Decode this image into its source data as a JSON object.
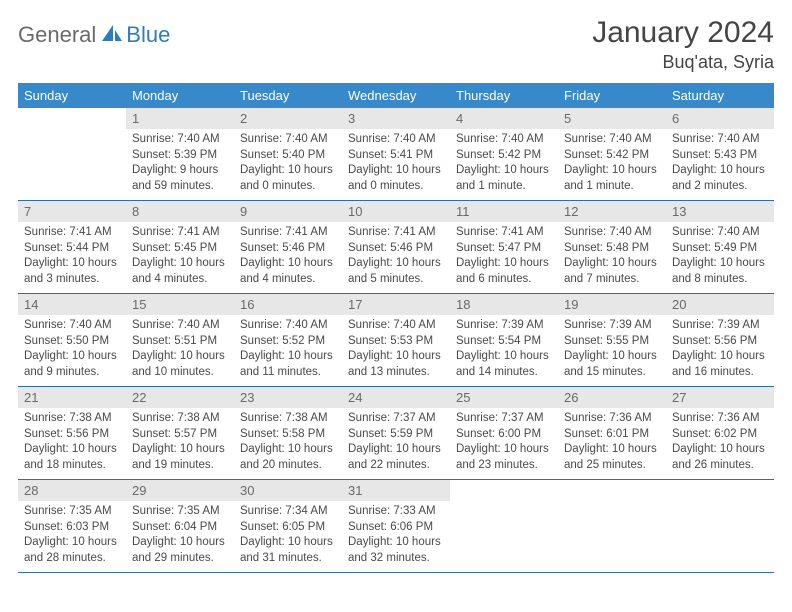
{
  "brand": {
    "general": "General",
    "blue": "Blue"
  },
  "title": "January 2024",
  "location": "Buq'ata, Syria",
  "colors": {
    "header_bg": "#3789ca",
    "header_text": "#ffffff",
    "daynum_bg": "#e7e7e7",
    "daynum_text": "#6a6a6a",
    "row_border": "#2f6da8",
    "body_text": "#4a4a4a",
    "title_text": "#454545",
    "logo_gray": "#6a6a6a",
    "logo_blue": "#2f7bbf"
  },
  "weekdays": [
    "Sunday",
    "Monday",
    "Tuesday",
    "Wednesday",
    "Thursday",
    "Friday",
    "Saturday"
  ],
  "weeks": [
    [
      {
        "n": "",
        "sunrise": "",
        "sunset": "",
        "daylight": ""
      },
      {
        "n": "1",
        "sunrise": "Sunrise: 7:40 AM",
        "sunset": "Sunset: 5:39 PM",
        "daylight": "Daylight: 9 hours and 59 minutes."
      },
      {
        "n": "2",
        "sunrise": "Sunrise: 7:40 AM",
        "sunset": "Sunset: 5:40 PM",
        "daylight": "Daylight: 10 hours and 0 minutes."
      },
      {
        "n": "3",
        "sunrise": "Sunrise: 7:40 AM",
        "sunset": "Sunset: 5:41 PM",
        "daylight": "Daylight: 10 hours and 0 minutes."
      },
      {
        "n": "4",
        "sunrise": "Sunrise: 7:40 AM",
        "sunset": "Sunset: 5:42 PM",
        "daylight": "Daylight: 10 hours and 1 minute."
      },
      {
        "n": "5",
        "sunrise": "Sunrise: 7:40 AM",
        "sunset": "Sunset: 5:42 PM",
        "daylight": "Daylight: 10 hours and 1 minute."
      },
      {
        "n": "6",
        "sunrise": "Sunrise: 7:40 AM",
        "sunset": "Sunset: 5:43 PM",
        "daylight": "Daylight: 10 hours and 2 minutes."
      }
    ],
    [
      {
        "n": "7",
        "sunrise": "Sunrise: 7:41 AM",
        "sunset": "Sunset: 5:44 PM",
        "daylight": "Daylight: 10 hours and 3 minutes."
      },
      {
        "n": "8",
        "sunrise": "Sunrise: 7:41 AM",
        "sunset": "Sunset: 5:45 PM",
        "daylight": "Daylight: 10 hours and 4 minutes."
      },
      {
        "n": "9",
        "sunrise": "Sunrise: 7:41 AM",
        "sunset": "Sunset: 5:46 PM",
        "daylight": "Daylight: 10 hours and 4 minutes."
      },
      {
        "n": "10",
        "sunrise": "Sunrise: 7:41 AM",
        "sunset": "Sunset: 5:46 PM",
        "daylight": "Daylight: 10 hours and 5 minutes."
      },
      {
        "n": "11",
        "sunrise": "Sunrise: 7:41 AM",
        "sunset": "Sunset: 5:47 PM",
        "daylight": "Daylight: 10 hours and 6 minutes."
      },
      {
        "n": "12",
        "sunrise": "Sunrise: 7:40 AM",
        "sunset": "Sunset: 5:48 PM",
        "daylight": "Daylight: 10 hours and 7 minutes."
      },
      {
        "n": "13",
        "sunrise": "Sunrise: 7:40 AM",
        "sunset": "Sunset: 5:49 PM",
        "daylight": "Daylight: 10 hours and 8 minutes."
      }
    ],
    [
      {
        "n": "14",
        "sunrise": "Sunrise: 7:40 AM",
        "sunset": "Sunset: 5:50 PM",
        "daylight": "Daylight: 10 hours and 9 minutes."
      },
      {
        "n": "15",
        "sunrise": "Sunrise: 7:40 AM",
        "sunset": "Sunset: 5:51 PM",
        "daylight": "Daylight: 10 hours and 10 minutes."
      },
      {
        "n": "16",
        "sunrise": "Sunrise: 7:40 AM",
        "sunset": "Sunset: 5:52 PM",
        "daylight": "Daylight: 10 hours and 11 minutes."
      },
      {
        "n": "17",
        "sunrise": "Sunrise: 7:40 AM",
        "sunset": "Sunset: 5:53 PM",
        "daylight": "Daylight: 10 hours and 13 minutes."
      },
      {
        "n": "18",
        "sunrise": "Sunrise: 7:39 AM",
        "sunset": "Sunset: 5:54 PM",
        "daylight": "Daylight: 10 hours and 14 minutes."
      },
      {
        "n": "19",
        "sunrise": "Sunrise: 7:39 AM",
        "sunset": "Sunset: 5:55 PM",
        "daylight": "Daylight: 10 hours and 15 minutes."
      },
      {
        "n": "20",
        "sunrise": "Sunrise: 7:39 AM",
        "sunset": "Sunset: 5:56 PM",
        "daylight": "Daylight: 10 hours and 16 minutes."
      }
    ],
    [
      {
        "n": "21",
        "sunrise": "Sunrise: 7:38 AM",
        "sunset": "Sunset: 5:56 PM",
        "daylight": "Daylight: 10 hours and 18 minutes."
      },
      {
        "n": "22",
        "sunrise": "Sunrise: 7:38 AM",
        "sunset": "Sunset: 5:57 PM",
        "daylight": "Daylight: 10 hours and 19 minutes."
      },
      {
        "n": "23",
        "sunrise": "Sunrise: 7:38 AM",
        "sunset": "Sunset: 5:58 PM",
        "daylight": "Daylight: 10 hours and 20 minutes."
      },
      {
        "n": "24",
        "sunrise": "Sunrise: 7:37 AM",
        "sunset": "Sunset: 5:59 PM",
        "daylight": "Daylight: 10 hours and 22 minutes."
      },
      {
        "n": "25",
        "sunrise": "Sunrise: 7:37 AM",
        "sunset": "Sunset: 6:00 PM",
        "daylight": "Daylight: 10 hours and 23 minutes."
      },
      {
        "n": "26",
        "sunrise": "Sunrise: 7:36 AM",
        "sunset": "Sunset: 6:01 PM",
        "daylight": "Daylight: 10 hours and 25 minutes."
      },
      {
        "n": "27",
        "sunrise": "Sunrise: 7:36 AM",
        "sunset": "Sunset: 6:02 PM",
        "daylight": "Daylight: 10 hours and 26 minutes."
      }
    ],
    [
      {
        "n": "28",
        "sunrise": "Sunrise: 7:35 AM",
        "sunset": "Sunset: 6:03 PM",
        "daylight": "Daylight: 10 hours and 28 minutes."
      },
      {
        "n": "29",
        "sunrise": "Sunrise: 7:35 AM",
        "sunset": "Sunset: 6:04 PM",
        "daylight": "Daylight: 10 hours and 29 minutes."
      },
      {
        "n": "30",
        "sunrise": "Sunrise: 7:34 AM",
        "sunset": "Sunset: 6:05 PM",
        "daylight": "Daylight: 10 hours and 31 minutes."
      },
      {
        "n": "31",
        "sunrise": "Sunrise: 7:33 AM",
        "sunset": "Sunset: 6:06 PM",
        "daylight": "Daylight: 10 hours and 32 minutes."
      },
      {
        "n": "",
        "sunrise": "",
        "sunset": "",
        "daylight": ""
      },
      {
        "n": "",
        "sunrise": "",
        "sunset": "",
        "daylight": ""
      },
      {
        "n": "",
        "sunrise": "",
        "sunset": "",
        "daylight": ""
      }
    ]
  ]
}
